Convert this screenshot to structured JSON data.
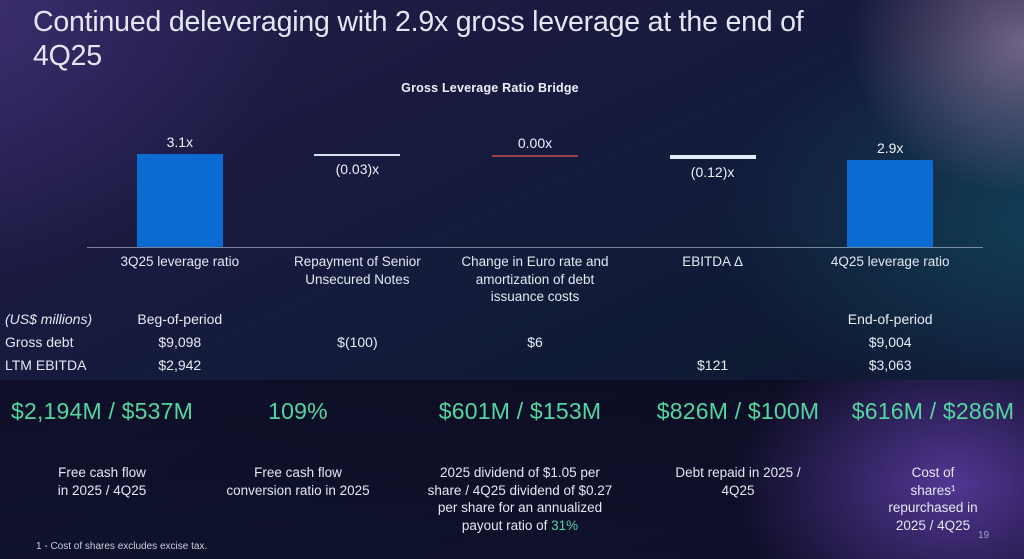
{
  "slide": {
    "title": "Continued deleveraging with 2.9x gross leverage at the end of\n4Q25",
    "footnote": "1 - Cost of shares excludes excise tax.",
    "page_number": "19"
  },
  "colors": {
    "accent_green": "#54d6a0",
    "bar_blue": "#0a6bd1",
    "connector_light": "#d5e2f1",
    "connector_bright": "#e6eef9",
    "connector_red": "#9e4049"
  },
  "chart_data": {
    "type": "bar",
    "subtype": "waterfall-bridge",
    "title": "Gross Leverage Ratio Bridge",
    "unit": "x (gross leverage ratio)",
    "legend": "none",
    "grid": "off",
    "ylim": [
      0,
      3.5
    ],
    "categories": [
      "3Q25 leverage ratio",
      "Repayment of Senior Unsecured Notes",
      "Change in Euro rate and amortization of debt issuance costs",
      "EBITDA Δ",
      "4Q25 leverage ratio"
    ],
    "values": [
      3.1,
      -0.03,
      0.0,
      -0.12,
      2.9
    ],
    "items": [
      {
        "category_display": "3Q25 leverage ratio",
        "value": 3.1,
        "label": "3.1x",
        "kind": "total",
        "label_position": "above"
      },
      {
        "category_display": "Repayment of Senior\nUnsecured Notes",
        "value": -0.03,
        "label": "(0.03)x",
        "kind": "delta",
        "connector": "thin-light",
        "label_position": "below"
      },
      {
        "category_display": "Change in Euro rate and\namortization of debt\nissuance costs",
        "value": 0.0,
        "label": "0.00x",
        "kind": "delta",
        "connector": "thin-red",
        "label_position": "above"
      },
      {
        "category_display": "EBITDA Δ",
        "value": -0.12,
        "label": "(0.12)x",
        "kind": "delta",
        "connector": "thick-light",
        "label_position": "below"
      },
      {
        "category_display": "4Q25 leverage ratio",
        "value": 2.9,
        "label": "2.9x",
        "kind": "total",
        "label_position": "above"
      }
    ]
  },
  "table": {
    "rows": [
      {
        "style": "header",
        "cells": [
          "(US$ millions)",
          "Beg-of-period",
          "",
          "",
          "",
          "End-of-period"
        ]
      },
      {
        "cells": [
          "Gross debt",
          "$9,098",
          "$(100)",
          "$6",
          "",
          "$9,004"
        ]
      },
      {
        "cells": [
          "LTM EBITDA",
          "$2,942",
          "",
          "",
          "$121",
          "$3,063"
        ]
      }
    ]
  },
  "kpis": [
    {
      "value": "$2,194M / $537M",
      "label": "Free cash flow\nin 2025 / 4Q25"
    },
    {
      "value": "109%",
      "label": "Free cash flow\nconversion ratio in 2025"
    },
    {
      "value": "$601M / $153M",
      "label": "2025 dividend of $1.05 per\nshare / 4Q25 dividend of $0.27\nper share for an annualized\npayout ratio of ",
      "label_highlight": "31%"
    },
    {
      "value": "$826M / $100M",
      "label": "Debt repaid in 2025 /\n4Q25"
    },
    {
      "value": "$616M / $286M",
      "label": "Cost of\nshares¹\nrepurchased in\n2025 / 4Q25"
    }
  ]
}
